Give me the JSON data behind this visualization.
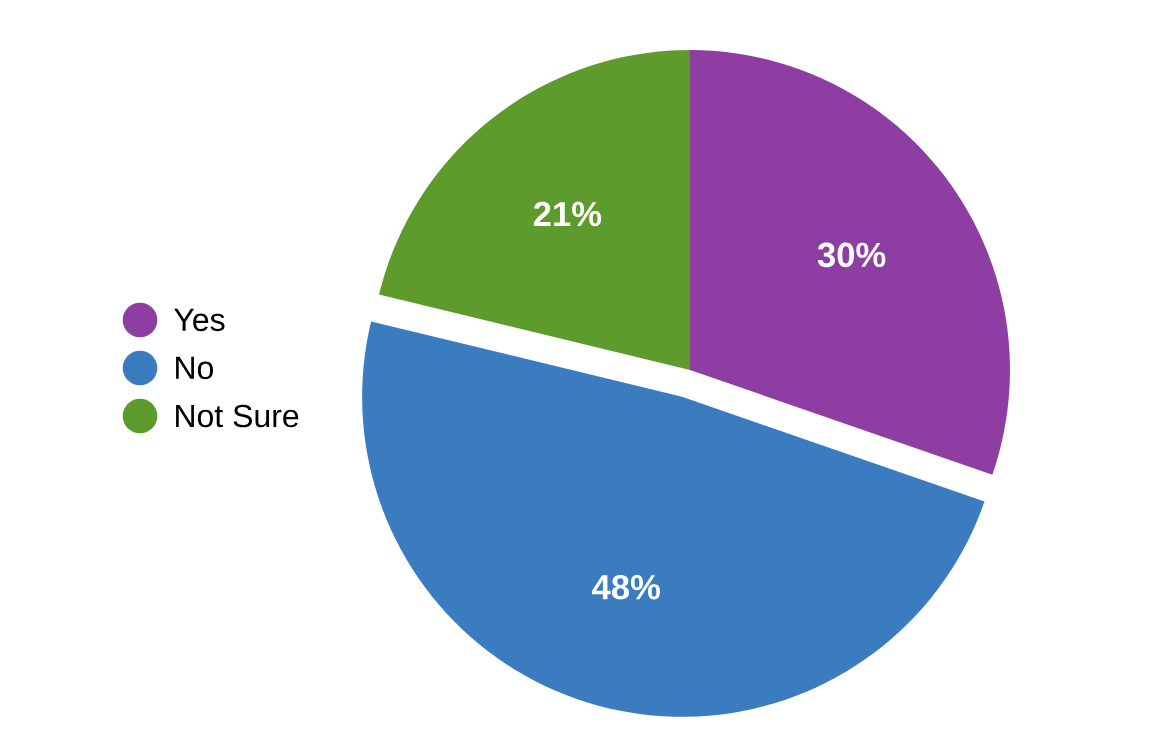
{
  "chart_data": {
    "type": "pie",
    "categories": [
      "Yes",
      "No",
      "Not Sure"
    ],
    "values": [
      30,
      48,
      21
    ],
    "value_labels": [
      "30%",
      "48%",
      "21%"
    ],
    "colors": [
      "#8e3ea2",
      "#3b7cc0",
      "#5c9b2c"
    ],
    "legend": "left"
  }
}
